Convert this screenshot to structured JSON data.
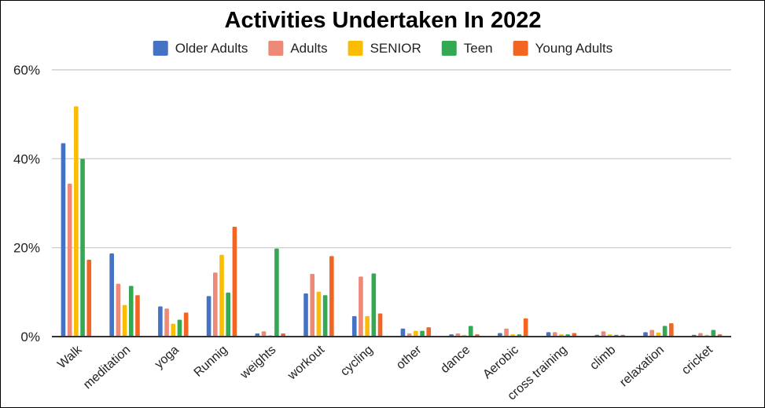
{
  "chart_data": {
    "type": "bar",
    "title": "Activities Undertaken In 2022",
    "xlabel": "",
    "ylabel": "",
    "ylim": [
      0,
      60
    ],
    "yticks": [
      "0%",
      "20%",
      "40%",
      "60%"
    ],
    "ytick_values": [
      0,
      20,
      40,
      60
    ],
    "grid": true,
    "legend_position": "top",
    "categories": [
      "Walk",
      "meditation",
      "yoga",
      "Runnig",
      "weights",
      "workout",
      "cycling",
      "other",
      "dance",
      "Aerobic",
      "cross training",
      "climb",
      "relaxation",
      "cricket"
    ],
    "series": [
      {
        "name": "Older Adults",
        "color": "#4472C4",
        "values": [
          43.5,
          18.7,
          6.8,
          9.1,
          0.7,
          9.7,
          4.6,
          1.8,
          0.5,
          0.8,
          1.0,
          0.4,
          1.0,
          0.4
        ]
      },
      {
        "name": "Adults",
        "color": "#EE8877",
        "values": [
          34.4,
          11.9,
          6.3,
          14.4,
          1.2,
          14.1,
          13.5,
          0.7,
          0.7,
          1.8,
          1.0,
          1.2,
          1.5,
          0.8
        ]
      },
      {
        "name": "SENIOR",
        "color": "#FBBC04",
        "values": [
          51.8,
          7.1,
          2.9,
          18.4,
          0.3,
          10.1,
          4.6,
          1.3,
          0.4,
          0.5,
          0.5,
          0.5,
          0.9,
          0.4
        ]
      },
      {
        "name": "Teen",
        "color": "#34A853",
        "values": [
          40.0,
          11.4,
          3.8,
          9.9,
          19.8,
          9.3,
          14.2,
          1.3,
          2.4,
          0.5,
          0.5,
          0.4,
          2.4,
          1.5
        ]
      },
      {
        "name": "Young Adults",
        "color": "#F26522",
        "values": [
          17.3,
          9.3,
          5.4,
          24.7,
          0.7,
          18.1,
          5.2,
          2.1,
          0.5,
          4.1,
          0.8,
          0.4,
          3.0,
          0.5
        ]
      }
    ]
  }
}
